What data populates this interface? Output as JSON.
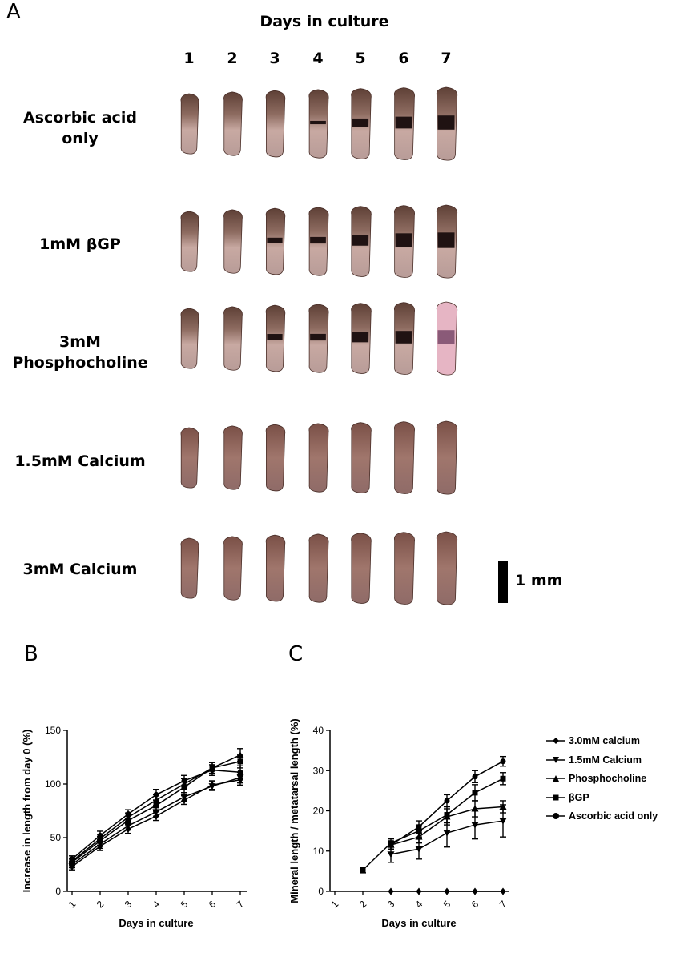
{
  "panel_a": {
    "letter": "A",
    "title": "Days in culture",
    "days": [
      "1",
      "2",
      "3",
      "4",
      "5",
      "6",
      "7"
    ],
    "rows": [
      {
        "label_lines": [
          "Ascorbic acid",
          "only"
        ]
      },
      {
        "label_lines": [
          "1mM βGP"
        ]
      },
      {
        "label_lines": [
          "3mM",
          "Phosphocholine"
        ]
      },
      {
        "label_lines": [
          "1.5mM Calcium"
        ]
      },
      {
        "label_lines": [
          "3mM Calcium"
        ]
      }
    ],
    "scale_bar_label": "1 mm",
    "colors": {
      "tissue": "#c8a9a2",
      "tissue_dark": "#5e4036",
      "mineral": "#1f1212",
      "pink": "#e6b5c4"
    }
  },
  "panel_b": {
    "letter": "B"
  },
  "panel_c": {
    "letter": "C"
  },
  "chart_data": [
    {
      "type": "line",
      "panel": "B",
      "xlabel": "Days in culture",
      "ylabel": "Increase in length from day 0 (%)",
      "x": [
        1,
        2,
        3,
        4,
        5,
        6,
        7
      ],
      "xticks": [
        "1",
        "2",
        "3",
        "4",
        "5",
        "6",
        "7"
      ],
      "yticks": [
        "0",
        "50",
        "100",
        "150"
      ],
      "ylim": [
        0,
        150
      ],
      "series": [
        {
          "values": [
            23,
            42,
            58,
            70,
            85,
            99,
            104
          ],
          "errors": [
            3,
            4,
            4,
            4,
            4,
            4,
            5
          ],
          "marker": "diamond"
        },
        {
          "values": [
            25,
            44,
            61,
            74,
            88,
            98,
            106
          ],
          "errors": [
            3,
            4,
            4,
            4,
            4,
            4,
            5
          ],
          "marker": "triangle-down"
        },
        {
          "values": [
            28,
            49,
            69,
            85,
            100,
            115,
            127
          ],
          "errors": [
            3,
            4,
            4,
            5,
            5,
            5,
            6
          ],
          "marker": "triangle-up"
        },
        {
          "values": [
            27,
            47,
            66,
            80,
            97,
            115,
            121
          ],
          "errors": [
            3,
            4,
            4,
            5,
            5,
            5,
            6
          ],
          "marker": "square"
        },
        {
          "values": [
            30,
            52,
            72,
            90,
            103,
            113,
            111
          ],
          "errors": [
            3,
            4,
            4,
            5,
            5,
            5,
            6
          ],
          "marker": "circle"
        }
      ]
    },
    {
      "type": "line",
      "panel": "C",
      "xlabel": "Days in culture",
      "ylabel": "Mineral length / metatarsal length (%)",
      "x": [
        1,
        2,
        3,
        4,
        5,
        6,
        7
      ],
      "xticks": [
        "1",
        "2",
        "3",
        "4",
        "5",
        "6",
        "7"
      ],
      "yticks": [
        "0",
        "10",
        "20",
        "30",
        "40"
      ],
      "ylim": [
        0,
        40
      ],
      "legend_position": "right",
      "series": [
        {
          "name": "3.0mM calcium",
          "x": [
            3,
            4,
            5,
            6,
            7
          ],
          "values": [
            0,
            0,
            0,
            0,
            0
          ],
          "errors": [
            0,
            0,
            0,
            0,
            0
          ],
          "marker": "diamond"
        },
        {
          "name": "1.5mM Calcium",
          "x": [
            3,
            4,
            5,
            6,
            7
          ],
          "values": [
            9.2,
            10.5,
            14.5,
            16.5,
            17.5
          ],
          "errors": [
            2,
            2.5,
            3.5,
            3.5,
            4
          ],
          "marker": "triangle-down"
        },
        {
          "name": "Phosphocholine",
          "x": [
            3,
            4,
            5,
            6,
            7
          ],
          "values": [
            11.5,
            13.5,
            18.5,
            20.5,
            21
          ],
          "errors": [
            1,
            1.5,
            2,
            2,
            1.5
          ],
          "marker": "triangle-up"
        },
        {
          "name": "βGP",
          "x": [
            2,
            3,
            4,
            5,
            6,
            7
          ],
          "values": [
            5.3,
            12,
            15,
            19,
            24.5,
            28
          ],
          "errors": [
            0.7,
            1,
            1.5,
            2,
            2,
            1.5
          ],
          "marker": "square"
        },
        {
          "name": "Ascorbic acid only",
          "x": [
            3,
            4,
            5,
            6,
            7
          ],
          "values": [
            11.5,
            16,
            22.5,
            28.5,
            32.3
          ],
          "errors": [
            1,
            1.5,
            1.5,
            1.5,
            1.2
          ],
          "marker": "circle"
        }
      ]
    }
  ]
}
